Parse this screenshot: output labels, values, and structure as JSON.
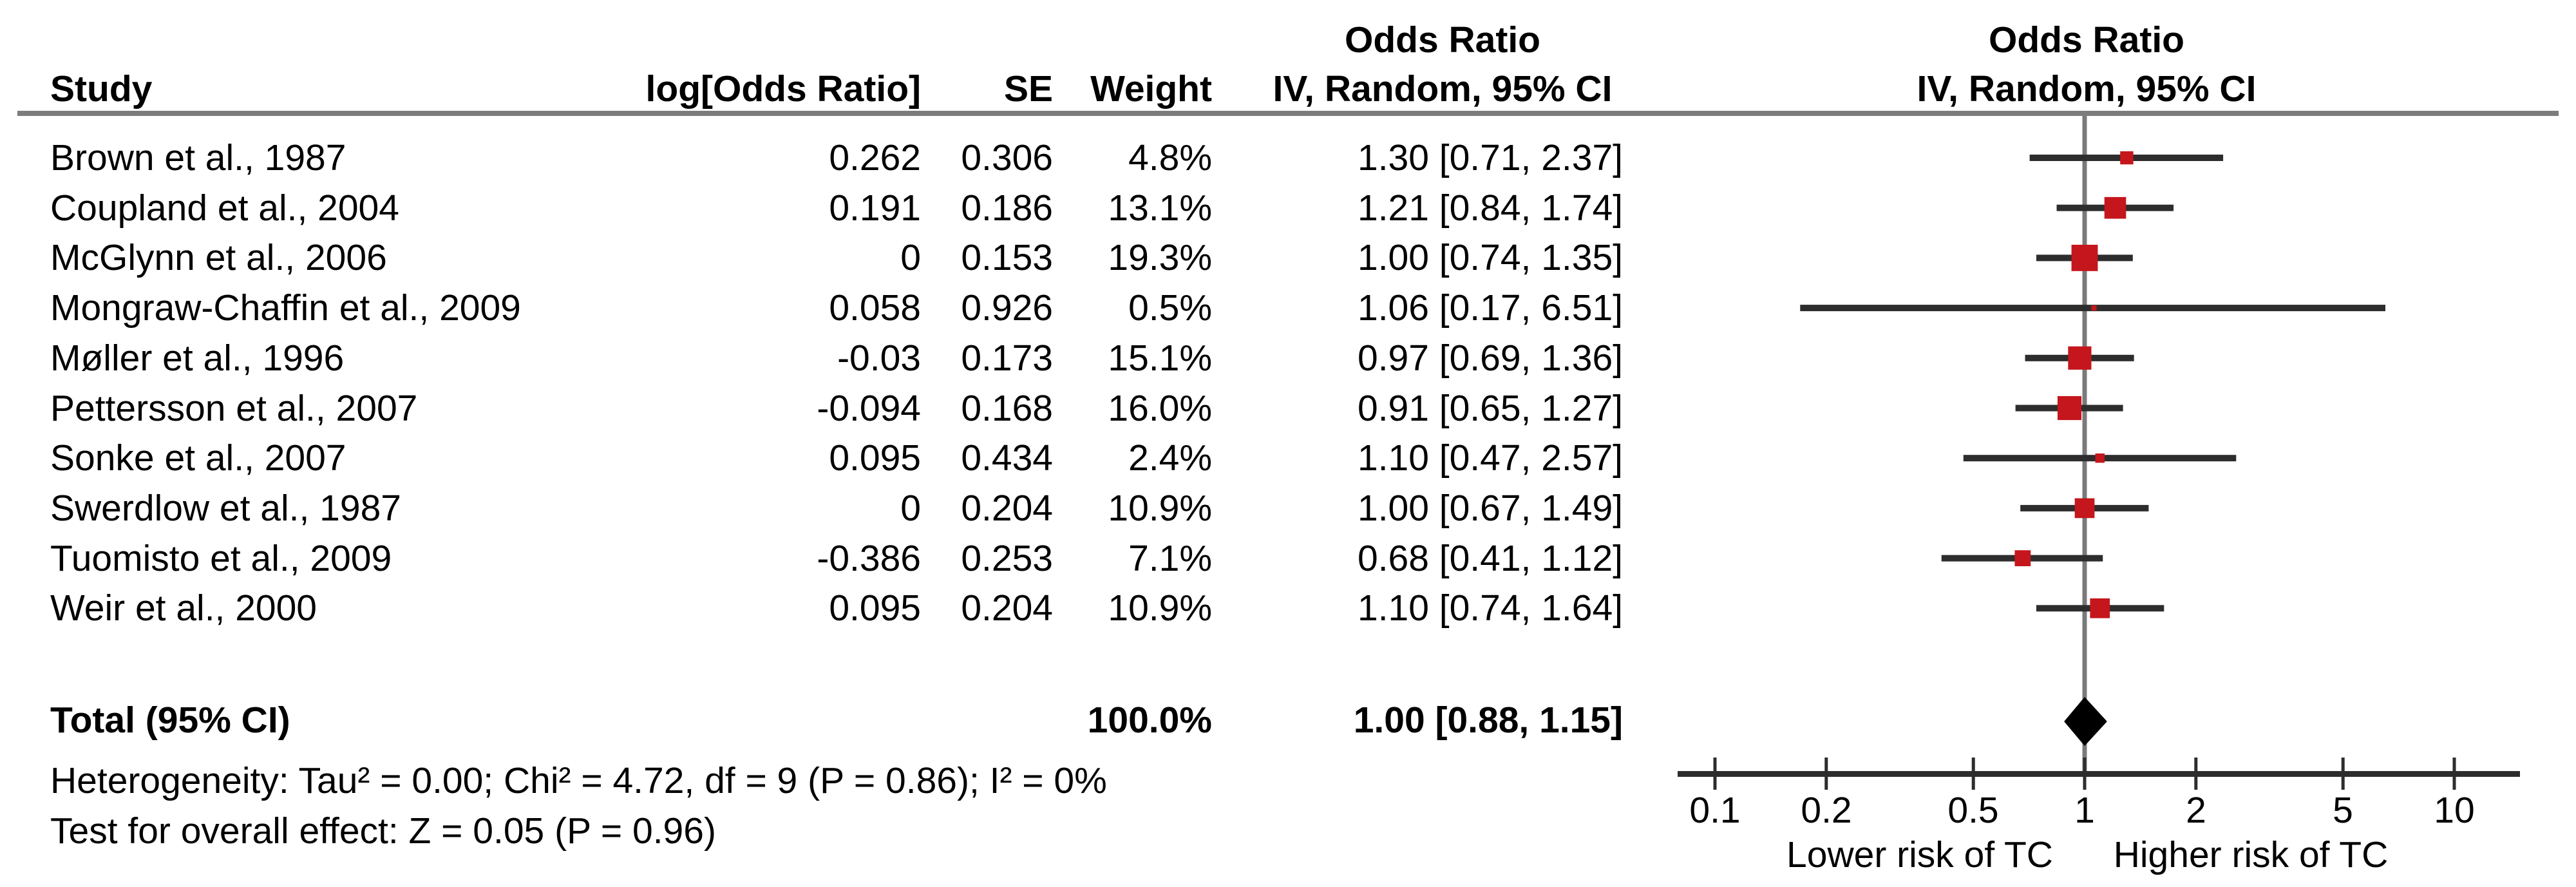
{
  "chart_data": {
    "type": "scatter",
    "subtype": "forest-plot-meta-analysis",
    "effect_measure": "Odds Ratio",
    "model": "IV, Random, 95% CI",
    "columns": {
      "study": "Study",
      "log_or": "log[Odds Ratio]",
      "se": "SE",
      "weight": "Weight",
      "or_col_line1": "Odds Ratio",
      "or_col_line2": "IV, Random, 95% CI",
      "plot_col_line1": "Odds Ratio",
      "plot_col_line2": "IV, Random, 95% CI"
    },
    "studies": [
      {
        "name": "Brown et al., 1987",
        "log_or": "0.262",
        "se": "0.306",
        "weight": "4.8%",
        "weight_pct": 4.8,
        "or": 1.3,
        "ci_low": 0.71,
        "ci_high": 2.37,
        "or_ci_text": "1.30 [0.71, 2.37]"
      },
      {
        "name": "Coupland et al., 2004",
        "log_or": "0.191",
        "se": "0.186",
        "weight": "13.1%",
        "weight_pct": 13.1,
        "or": 1.21,
        "ci_low": 0.84,
        "ci_high": 1.74,
        "or_ci_text": "1.21 [0.84, 1.74]"
      },
      {
        "name": "McGlynn et al., 2006",
        "log_or": "0",
        "se": "0.153",
        "weight": "19.3%",
        "weight_pct": 19.3,
        "or": 1.0,
        "ci_low": 0.74,
        "ci_high": 1.35,
        "or_ci_text": "1.00 [0.74, 1.35]"
      },
      {
        "name": "Mongraw-Chaffin et al., 2009",
        "log_or": "0.058",
        "se": "0.926",
        "weight": "0.5%",
        "weight_pct": 0.5,
        "or": 1.06,
        "ci_low": 0.17,
        "ci_high": 6.51,
        "or_ci_text": "1.06 [0.17, 6.51]"
      },
      {
        "name": "Møller et al., 1996",
        "log_or": "-0.03",
        "se": "0.173",
        "weight": "15.1%",
        "weight_pct": 15.1,
        "or": 0.97,
        "ci_low": 0.69,
        "ci_high": 1.36,
        "or_ci_text": "0.97 [0.69, 1.36]"
      },
      {
        "name": "Pettersson et al., 2007",
        "log_or": "-0.094",
        "se": "0.168",
        "weight": "16.0%",
        "weight_pct": 16.0,
        "or": 0.91,
        "ci_low": 0.65,
        "ci_high": 1.27,
        "or_ci_text": "0.91 [0.65, 1.27]"
      },
      {
        "name": "Sonke et al., 2007",
        "log_or": "0.095",
        "se": "0.434",
        "weight": "2.4%",
        "weight_pct": 2.4,
        "or": 1.1,
        "ci_low": 0.47,
        "ci_high": 2.57,
        "or_ci_text": "1.10 [0.47, 2.57]"
      },
      {
        "name": "Swerdlow et al., 1987",
        "log_or": "0",
        "se": "0.204",
        "weight": "10.9%",
        "weight_pct": 10.9,
        "or": 1.0,
        "ci_low": 0.67,
        "ci_high": 1.49,
        "or_ci_text": "1.00 [0.67, 1.49]"
      },
      {
        "name": "Tuomisto et al., 2009",
        "log_or": "-0.386",
        "se": "0.253",
        "weight": "7.1%",
        "weight_pct": 7.1,
        "or": 0.68,
        "ci_low": 0.41,
        "ci_high": 1.12,
        "or_ci_text": "0.68 [0.41, 1.12]"
      },
      {
        "name": "Weir et al., 2000",
        "log_or": "0.095",
        "se": "0.204",
        "weight": "10.9%",
        "weight_pct": 10.9,
        "or": 1.1,
        "ci_low": 0.74,
        "ci_high": 1.64,
        "or_ci_text": "1.10 [0.74, 1.64]"
      }
    ],
    "total": {
      "label": "Total (95% CI)",
      "weight": "100.0%",
      "or": 1.0,
      "ci_low": 0.88,
      "ci_high": 1.15,
      "or_ci_text": "1.00 [0.88, 1.15]"
    },
    "footnotes": {
      "heterogeneity": "Heterogeneity: Tau² = 0.00; Chi² = 4.72, df = 9 (P = 0.86); I² = 0%",
      "overall_effect": "Test for overall effect: Z = 0.05 (P = 0.96)"
    },
    "axis": {
      "scale": "log10",
      "xlim": [
        0.1,
        10
      ],
      "ref_line": 1,
      "ticks": [
        0.1,
        0.2,
        0.5,
        1,
        2,
        5,
        10
      ],
      "tick_labels": [
        "0.1",
        "0.2",
        "0.5",
        "1",
        "2",
        "5",
        "10"
      ],
      "left_label": "Lower risk of TC",
      "right_label": "Higher risk of TC",
      "grid": false
    },
    "colors": {
      "square": "#c4161c",
      "ci_line": "#2d2d2d",
      "axis_line": "#2d2d2d",
      "ref_line": "#7a7a7a",
      "diamond": "#000000",
      "header_rule": "#7c7c7c",
      "text": "#000000"
    }
  }
}
